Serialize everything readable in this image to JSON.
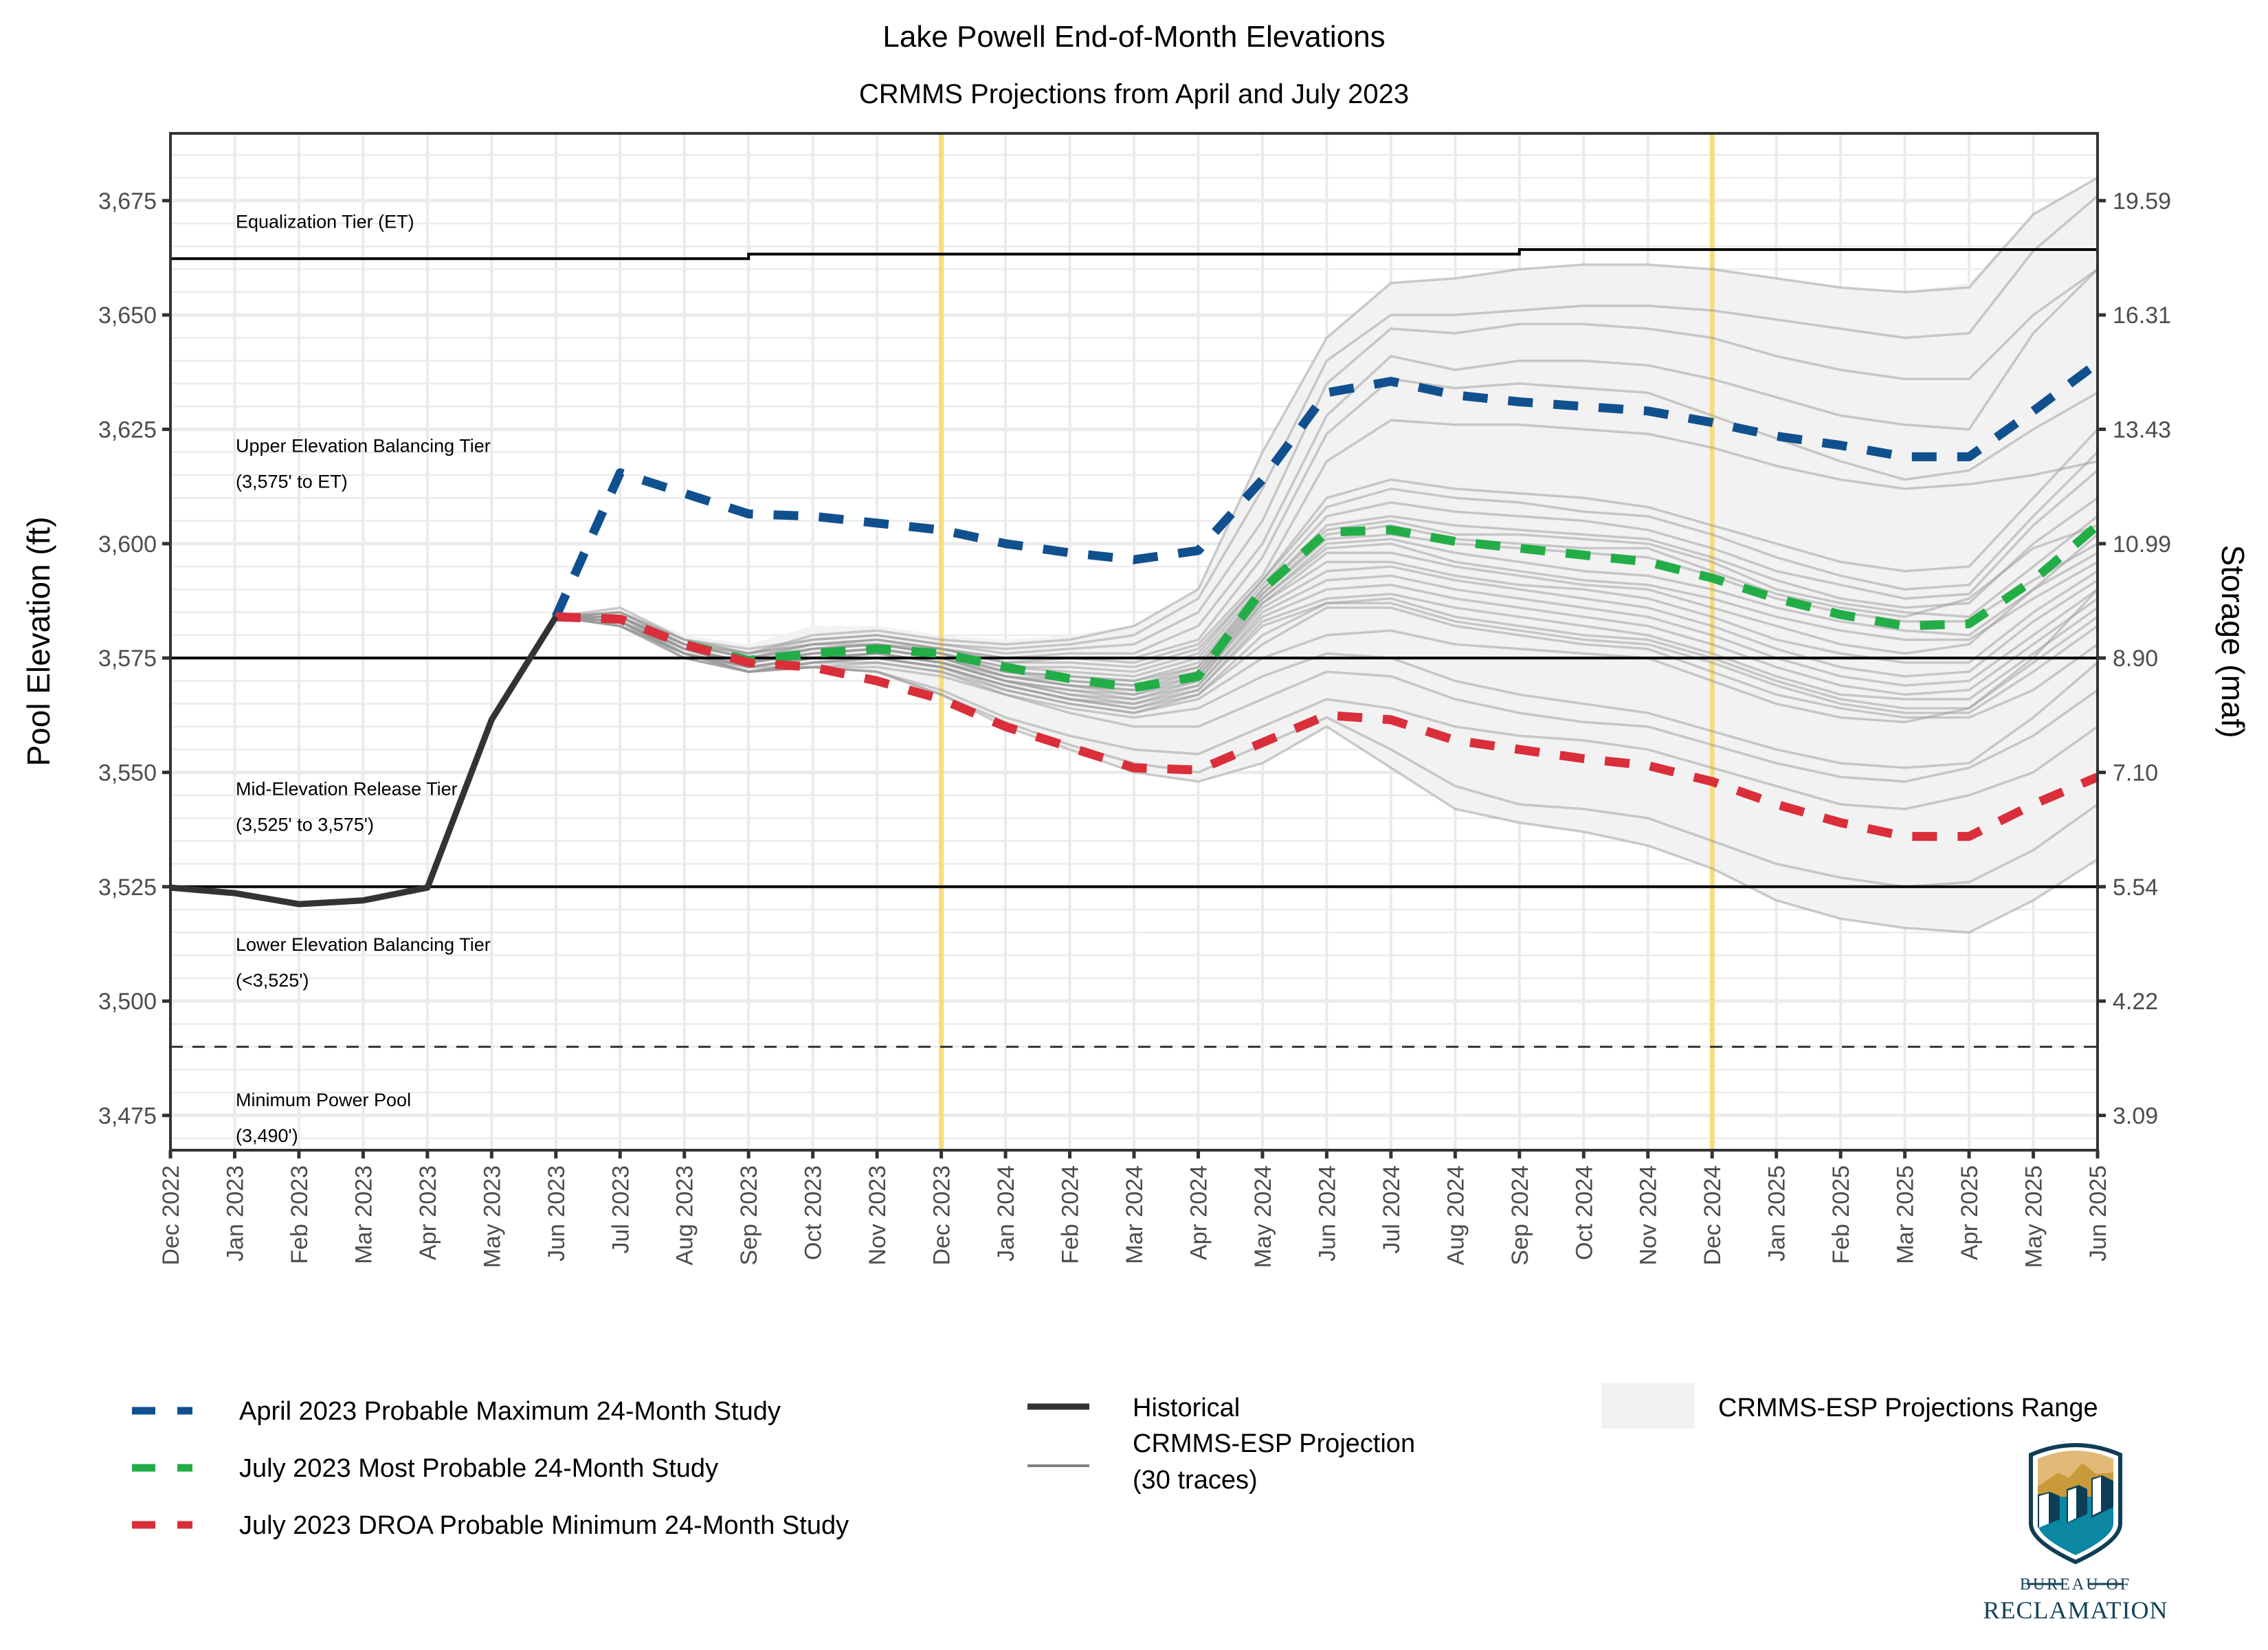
{
  "chart_data": {
    "type": "line",
    "title": "Lake Powell End-of-Month Elevations",
    "subtitle": "CRMMS Projections from April and July 2023",
    "ylabel": "Pool Elevation (ft)",
    "y2label": "Storage (maf)",
    "xlabel": "",
    "ylim": [
      3467.4,
      3689.7
    ],
    "grid": true,
    "legend_position": "bottom",
    "x": [
      "Dec 2022",
      "Jan 2023",
      "Feb 2023",
      "Mar 2023",
      "Apr 2023",
      "May 2023",
      "Jun 2023",
      "Jul 2023",
      "Aug 2023",
      "Sep 2023",
      "Oct 2023",
      "Nov 2023",
      "Dec 2023",
      "Jan 2024",
      "Feb 2024",
      "Mar 2024",
      "Apr 2024",
      "May 2024",
      "Jun 2024",
      "Jul 2024",
      "Aug 2024",
      "Sep 2024",
      "Oct 2024",
      "Nov 2024",
      "Dec 2024",
      "Jan 2025",
      "Feb 2025",
      "Mar 2025",
      "Apr 2025",
      "May 2025",
      "Jun 2025"
    ],
    "y_ticks": [
      3475,
      3500,
      3525,
      3550,
      3575,
      3600,
      3625,
      3650,
      3675
    ],
    "y_tick_labels": [
      "3,475",
      "3,500",
      "3,525",
      "3,550",
      "3,575",
      "3,600",
      "3,625",
      "3,650",
      "3,675"
    ],
    "y2_tick_labels": [
      "3.09",
      "4.22",
      "5.54",
      "7.10",
      "8.90",
      "10.99",
      "13.43",
      "16.31",
      "19.59"
    ],
    "vertical_markers": [
      "Dec 2023",
      "Dec 2024"
    ],
    "vertical_marker_color": "#f9dc7c",
    "reference_lines": [
      {
        "name": "Equalization Tier threshold",
        "values": [
          3662.3,
          3662.3,
          3662.3,
          3662.3,
          3662.3,
          3662.3,
          3662.3,
          3662.3,
          3662.3,
          3663.3,
          3663.3,
          3663.3,
          3663.3,
          3663.3,
          3663.3,
          3663.3,
          3663.3,
          3663.3,
          3663.3,
          3663.3,
          3663.3,
          3664.3,
          3664.3,
          3664.3,
          3664.3,
          3664.3,
          3664.3,
          3664.3,
          3664.3,
          3664.3,
          3664.3
        ],
        "style": "step"
      },
      {
        "name": "3,575 ft",
        "value": 3575,
        "style": "solid"
      },
      {
        "name": "3,525 ft",
        "value": 3525,
        "style": "solid"
      },
      {
        "name": "Minimum Power Pool 3,490 ft",
        "value": 3490,
        "style": "dashed"
      }
    ],
    "tier_labels": [
      {
        "lines": [
          "Equalization Tier (ET)"
        ],
        "y": 3669
      },
      {
        "lines": [
          "Upper Elevation Balancing Tier",
          "(3,575' to ET)"
        ],
        "y": 3620
      },
      {
        "lines": [
          "Mid-Elevation Release Tier",
          "(3,525' to 3,575')"
        ],
        "y": 3545
      },
      {
        "lines": [
          "Lower Elevation Balancing Tier",
          "(<3,525')"
        ],
        "y": 3511
      },
      {
        "lines": [
          "Minimum Power Pool",
          "(3,490')"
        ],
        "y": 3477
      }
    ],
    "series": [
      {
        "name": "April 2023 Probable Maximum  24-Month Study",
        "color": "#11508e",
        "dash": true,
        "start": 6,
        "values": [
          3584,
          3615.5,
          3611,
          3606.5,
          3606,
          3604.5,
          3603,
          3600,
          3598,
          3596.5,
          3598.5,
          3614,
          3633,
          3635.5,
          3632.5,
          3631,
          3630,
          3629,
          3626.5,
          3623.5,
          3621.5,
          3619,
          3619,
          3629,
          3639.5
        ]
      },
      {
        "name": "July 2023 Most Probable 24-Month Study",
        "color": "#23ad47",
        "dash": true,
        "start": 6,
        "values": [
          3584,
          3583.5,
          3578,
          3574.5,
          3576,
          3577,
          3576,
          3573,
          3570.5,
          3568.5,
          3571,
          3590,
          3602.5,
          3603,
          3600.5,
          3599,
          3597.5,
          3596,
          3592.5,
          3588,
          3584.5,
          3582,
          3582.5,
          3592,
          3604
        ]
      },
      {
        "name": "July 2023 DROA Probable Minimum 24-Month Study",
        "color": "#da2e3a",
        "dash": true,
        "start": 6,
        "values": [
          3584,
          3583.5,
          3578,
          3574,
          3573,
          3570,
          3566,
          3560,
          3555.5,
          3551,
          3550.5,
          3556.5,
          3562.5,
          3561.5,
          3557,
          3555,
          3553,
          3551.5,
          3548,
          3543,
          3539,
          3536,
          3536,
          3543,
          3549
        ]
      },
      {
        "name": "Historical",
        "color": "#333333",
        "dash": false,
        "start": 0,
        "values": [
          3524.8,
          3523.6,
          3521.2,
          3522.0,
          3524.8,
          3561.5,
          3584
        ]
      }
    ],
    "range": {
      "name": "CRMMS-ESP Projections Range",
      "color": "#f2f2f2",
      "start": 6,
      "max": [
        3584,
        3586,
        3580,
        3578,
        3582,
        3582,
        3580,
        3579,
        3580,
        3582,
        3590,
        3620,
        3645,
        3657,
        3658,
        3660,
        3661,
        3661,
        3660,
        3658,
        3656,
        3655,
        3657,
        3672,
        3680
      ],
      "min": [
        3584,
        3582,
        3576,
        3572,
        3573,
        3572,
        3567,
        3560,
        3555,
        3550,
        3548,
        3552,
        3560,
        3551,
        3542,
        3539,
        3537,
        3534,
        3529,
        3522,
        3518,
        3516,
        3515,
        3522,
        3531
      ]
    },
    "traces_label": "CRMMS-ESP Projection (30 traces)",
    "traces_color": "#999999",
    "traces_start": 6,
    "traces": [
      [
        3584,
        3586,
        3579,
        3576,
        3580,
        3581,
        3579,
        3578,
        3579,
        3582,
        3590,
        3620,
        3645,
        3657,
        3658,
        3660,
        3661,
        3661,
        3660,
        3658,
        3656,
        3655,
        3656,
        3672,
        3680
      ],
      [
        3584,
        3585,
        3579,
        3577,
        3579,
        3580,
        3578,
        3577,
        3578,
        3580,
        3588,
        3612,
        3640,
        3650,
        3650,
        3651,
        3652,
        3652,
        3651,
        3649,
        3647,
        3645,
        3646,
        3664,
        3676
      ],
      [
        3584,
        3585,
        3579,
        3576,
        3579,
        3580,
        3578,
        3576,
        3577,
        3578,
        3585,
        3605,
        3635,
        3647,
        3646,
        3648,
        3648,
        3647,
        3645,
        3641,
        3638,
        3636,
        3636,
        3650,
        3660
      ],
      [
        3584,
        3585,
        3578,
        3576,
        3578,
        3579,
        3577,
        3575,
        3576,
        3576,
        3582,
        3600,
        3628,
        3641,
        3638,
        3640,
        3640,
        3639,
        3636,
        3632,
        3628,
        3626,
        3625,
        3646,
        3660
      ],
      [
        3584,
        3585,
        3578,
        3576,
        3578,
        3579,
        3577,
        3575,
        3575,
        3575,
        3579,
        3597,
        3624,
        3636,
        3634,
        3635,
        3634,
        3633,
        3628,
        3623,
        3618,
        3614,
        3616,
        3625,
        3633
      ],
      [
        3584,
        3584,
        3578,
        3575,
        3578,
        3579,
        3577,
        3574,
        3575,
        3574,
        3578,
        3593,
        3618,
        3627,
        3626,
        3626,
        3625,
        3624,
        3621,
        3617,
        3614,
        3612,
        3613,
        3615,
        3618
      ],
      [
        3584,
        3584,
        3578,
        3575,
        3578,
        3578,
        3577,
        3574,
        3574,
        3573,
        3577,
        3592,
        3610,
        3614,
        3612,
        3611,
        3610,
        3608,
        3604,
        3600,
        3596,
        3594,
        3595,
        3610,
        3625
      ],
      [
        3584,
        3584,
        3578,
        3575,
        3577,
        3578,
        3576,
        3573,
        3573,
        3572,
        3576,
        3592,
        3608,
        3612,
        3610,
        3609,
        3607,
        3606,
        3602,
        3597,
        3593,
        3590,
        3591,
        3606,
        3620
      ],
      [
        3584,
        3584,
        3578,
        3575,
        3577,
        3578,
        3576,
        3573,
        3572,
        3571,
        3575,
        3591,
        3606,
        3609,
        3607,
        3606,
        3605,
        3603,
        3599,
        3594,
        3591,
        3588,
        3589,
        3604,
        3616
      ],
      [
        3584,
        3584,
        3577,
        3574,
        3577,
        3578,
        3576,
        3572,
        3571,
        3570,
        3574,
        3590,
        3604,
        3606,
        3604,
        3603,
        3602,
        3601,
        3597,
        3592,
        3588,
        3586,
        3587,
        3600,
        3610
      ],
      [
        3584,
        3584,
        3577,
        3574,
        3577,
        3578,
        3576,
        3572,
        3571,
        3570,
        3573,
        3590,
        3603,
        3605,
        3602,
        3602,
        3601,
        3600,
        3596,
        3590,
        3587,
        3585,
        3584,
        3595,
        3606
      ],
      [
        3584,
        3584,
        3577,
        3574,
        3576,
        3577,
        3575,
        3572,
        3570,
        3569,
        3573,
        3589,
        3602,
        3604,
        3601,
        3600,
        3599,
        3599,
        3594,
        3589,
        3586,
        3584,
        3588,
        3599,
        3604
      ],
      [
        3584,
        3584,
        3577,
        3574,
        3576,
        3577,
        3575,
        3571,
        3570,
        3569,
        3572,
        3589,
        3601,
        3602,
        3600,
        3599,
        3598,
        3597,
        3593,
        3588,
        3585,
        3583,
        3583,
        3592,
        3600
      ],
      [
        3584,
        3584,
        3577,
        3574,
        3576,
        3577,
        3575,
        3571,
        3569,
        3568,
        3572,
        3588,
        3600,
        3601,
        3598,
        3596,
        3594,
        3593,
        3590,
        3586,
        3583,
        3581,
        3580,
        3590,
        3598
      ],
      [
        3584,
        3584,
        3577,
        3574,
        3576,
        3577,
        3575,
        3571,
        3569,
        3568,
        3571,
        3588,
        3599,
        3600,
        3596,
        3594,
        3592,
        3591,
        3588,
        3584,
        3581,
        3579,
        3579,
        3588,
        3596
      ],
      [
        3584,
        3583,
        3577,
        3573,
        3575,
        3576,
        3574,
        3571,
        3569,
        3567,
        3571,
        3587,
        3598,
        3598,
        3595,
        3593,
        3591,
        3590,
        3586,
        3582,
        3578,
        3576,
        3578,
        3590,
        3602
      ],
      [
        3584,
        3583,
        3577,
        3573,
        3575,
        3576,
        3574,
        3570,
        3568,
        3567,
        3570,
        3587,
        3596,
        3596,
        3593,
        3591,
        3590,
        3588,
        3584,
        3579,
        3576,
        3574,
        3574,
        3585,
        3594
      ],
      [
        3584,
        3583,
        3577,
        3573,
        3575,
        3576,
        3574,
        3570,
        3568,
        3566,
        3570,
        3586,
        3594,
        3595,
        3592,
        3590,
        3588,
        3586,
        3582,
        3577,
        3573,
        3571,
        3572,
        3583,
        3592
      ],
      [
        3584,
        3583,
        3576,
        3573,
        3575,
        3576,
        3574,
        3570,
        3567,
        3566,
        3569,
        3585,
        3592,
        3593,
        3590,
        3588,
        3586,
        3584,
        3580,
        3575,
        3571,
        3569,
        3570,
        3580,
        3590
      ],
      [
        3584,
        3583,
        3576,
        3573,
        3575,
        3576,
        3574,
        3570,
        3567,
        3565,
        3569,
        3584,
        3590,
        3591,
        3588,
        3586,
        3584,
        3582,
        3578,
        3573,
        3569,
        3567,
        3568,
        3578,
        3588
      ],
      [
        3584,
        3583,
        3576,
        3573,
        3575,
        3575,
        3573,
        3569,
        3566,
        3565,
        3568,
        3583,
        3588,
        3589,
        3586,
        3584,
        3582,
        3580,
        3576,
        3571,
        3567,
        3566,
        3566,
        3576,
        3586
      ],
      [
        3584,
        3583,
        3576,
        3572,
        3574,
        3575,
        3573,
        3569,
        3566,
        3564,
        3568,
        3582,
        3587,
        3588,
        3584,
        3582,
        3580,
        3579,
        3575,
        3570,
        3566,
        3564,
        3564,
        3574,
        3584
      ],
      [
        3584,
        3583,
        3576,
        3572,
        3574,
        3575,
        3573,
        3569,
        3566,
        3564,
        3567,
        3580,
        3587,
        3587,
        3583,
        3581,
        3579,
        3578,
        3574,
        3569,
        3565,
        3563,
        3563,
        3572,
        3582
      ],
      [
        3584,
        3583,
        3576,
        3572,
        3574,
        3575,
        3573,
        3568,
        3565,
        3563,
        3567,
        3578,
        3586,
        3586,
        3582,
        3580,
        3578,
        3577,
        3572,
        3567,
        3564,
        3562,
        3562,
        3568,
        3578
      ],
      [
        3584,
        3583,
        3575,
        3572,
        3574,
        3574,
        3572,
        3568,
        3565,
        3563,
        3566,
        3575,
        3580,
        3581,
        3578,
        3577,
        3576,
        3575,
        3570,
        3565,
        3562,
        3561,
        3564,
        3575,
        3590
      ],
      [
        3584,
        3582,
        3575,
        3572,
        3573,
        3574,
        3572,
        3567,
        3564,
        3562,
        3564,
        3571,
        3576,
        3575,
        3570,
        3567,
        3565,
        3563,
        3559,
        3555,
        3552,
        3551,
        3552,
        3562,
        3574
      ],
      [
        3584,
        3582,
        3575,
        3572,
        3573,
        3573,
        3571,
        3567,
        3563,
        3560,
        3560,
        3566,
        3572,
        3571,
        3566,
        3563,
        3561,
        3560,
        3556,
        3552,
        3549,
        3548,
        3551,
        3558,
        3568
      ],
      [
        3584,
        3582,
        3576,
        3573,
        3573,
        3572,
        3568,
        3562,
        3558,
        3555,
        3554,
        3560,
        3566,
        3564,
        3560,
        3558,
        3557,
        3555,
        3551,
        3547,
        3543,
        3542,
        3545,
        3550,
        3560
      ],
      [
        3584,
        3582,
        3576,
        3572,
        3573,
        3572,
        3567,
        3561,
        3556,
        3552,
        3550,
        3556,
        3562,
        3555,
        3547,
        3543,
        3542,
        3540,
        3535,
        3530,
        3527,
        3525,
        3526,
        3533,
        3543
      ],
      [
        3584,
        3582,
        3576,
        3572,
        3573,
        3572,
        3567,
        3560,
        3555,
        3550,
        3548,
        3552,
        3560,
        3551,
        3542,
        3539,
        3537,
        3534,
        3529,
        3522,
        3518,
        3516,
        3515,
        3522,
        3531
      ]
    ]
  },
  "legend": {
    "col1": [
      {
        "label": "April 2023 Probable Maximum  24-Month Study",
        "color": "#11508e",
        "kind": "dash"
      },
      {
        "label": "July 2023 Most Probable 24-Month Study",
        "color": "#23ad47",
        "kind": "dash"
      },
      {
        "label": "July 2023 DROA Probable Minimum 24-Month Study",
        "color": "#da2e3a",
        "kind": "dash"
      }
    ],
    "col2": [
      {
        "label": "Historical",
        "color": "#333333",
        "kind": "line"
      },
      {
        "label": "CRMMS-ESP Projection",
        "label2": "(30 traces)",
        "color": "#7f7f7f",
        "kind": "thin"
      }
    ],
    "col3": [
      {
        "label": "CRMMS-ESP Projections Range",
        "color": "#f2f2f2",
        "kind": "box"
      }
    ]
  },
  "logo": {
    "line1": "BUREAU OF",
    "line2": "RECLAMATION",
    "colors": {
      "teal": "#0b86a3",
      "navy": "#0e3e55",
      "gold": "#c99a3a",
      "sand": "#e2b976"
    }
  }
}
